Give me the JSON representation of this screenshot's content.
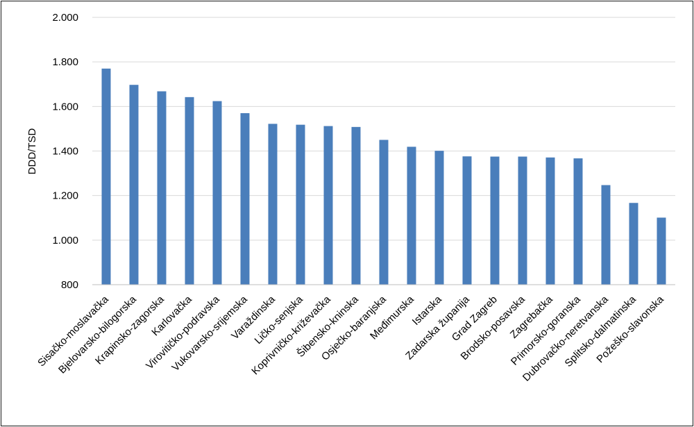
{
  "chart_data": {
    "type": "bar",
    "title": "",
    "xlabel": "",
    "ylabel": "DDD/TSD",
    "ylim": [
      800,
      2000
    ],
    "yticks": [
      800,
      1000,
      1200,
      1400,
      1600,
      1800,
      2000
    ],
    "ytick_labels": [
      "800",
      "1.000",
      "1.200",
      "1.400",
      "1.600",
      "1.800",
      "2.000"
    ],
    "grid": true,
    "legend": "none",
    "bar_color": "#4a7ebb",
    "categories": [
      "Sisačko-moslavačka",
      "Bjelovarsko-bilogorska",
      "Krapinsko-zagorska",
      "Karlovačka",
      "Virovitičko-podravska",
      "Vukovarsko-srijemska",
      "Varaždinska",
      "Ličko-senjska",
      "Koprivničko-križevačka",
      "Šibensko-kninska",
      "Osječko-baranjska",
      "Međimurska",
      "Istarska",
      "Zadarska županija",
      "Grad Zagreb",
      "Brodsko-posavska",
      "Zagrebačka",
      "Primorsko-goranska",
      "Dubrovačko-neretvanska",
      "Splitsko-dalmatinska",
      "Požeško-slavonska"
    ],
    "values": [
      1770,
      1697,
      1668,
      1642,
      1624,
      1570,
      1522,
      1518,
      1512,
      1508,
      1450,
      1419,
      1401,
      1376,
      1375,
      1375,
      1371,
      1367,
      1247,
      1167,
      1101
    ]
  }
}
